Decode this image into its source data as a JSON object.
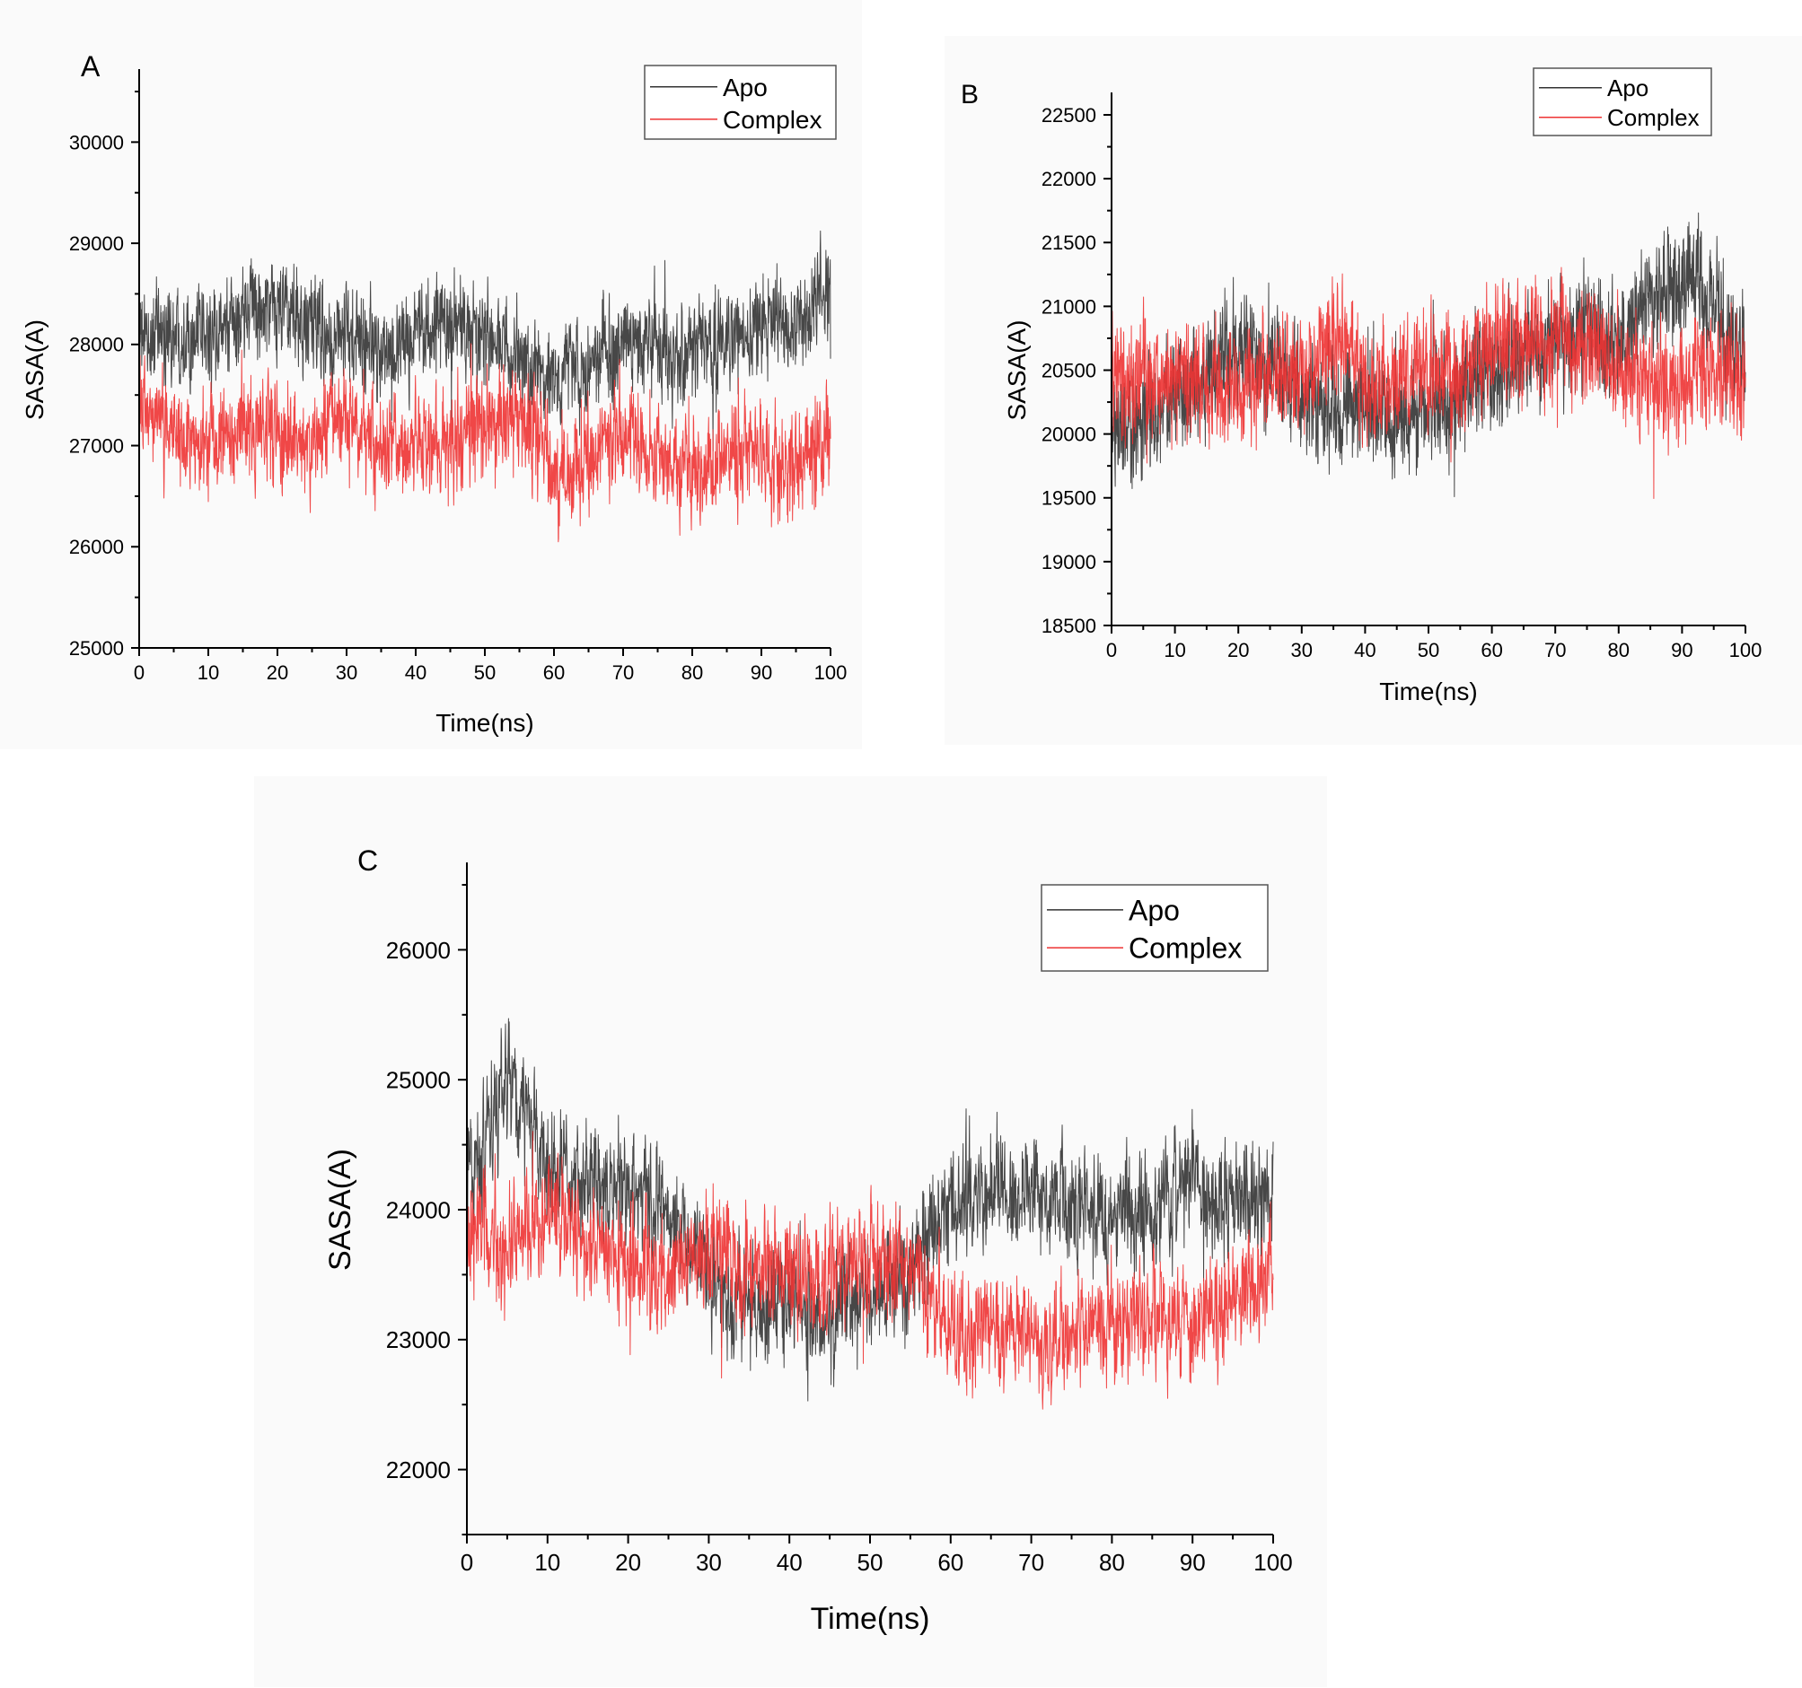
{
  "chart_data": [
    {
      "panel": "A",
      "type": "line",
      "xlabel": "Time(ns)",
      "ylabel": "SASA(A)",
      "xlim": [
        0,
        100
      ],
      "ylim": [
        25000,
        30500
      ],
      "xticks": [
        0,
        10,
        20,
        30,
        40,
        50,
        60,
        70,
        80,
        90,
        100
      ],
      "xtick_labels": [
        "0",
        "10",
        "20",
        "30",
        "40",
        "50",
        "60",
        "70",
        "80",
        "90",
        "100"
      ],
      "yticks": [
        25000,
        26000,
        27000,
        28000,
        29000,
        30000
      ],
      "ytick_labels": [
        "25000",
        "26000",
        "27000",
        "28000",
        "29000",
        "30000"
      ],
      "legend_position": "top-right",
      "series": [
        {
          "name": "Apo",
          "color": "#333333",
          "noise": 450,
          "trend": [
            [
              0,
              28000
            ],
            [
              5,
              28150
            ],
            [
              10,
              28050
            ],
            [
              15,
              28300
            ],
            [
              20,
              28350
            ],
            [
              25,
              28200
            ],
            [
              30,
              28050
            ],
            [
              35,
              27950
            ],
            [
              40,
              28100
            ],
            [
              45,
              28200
            ],
            [
              50,
              28050
            ],
            [
              55,
              27900
            ],
            [
              60,
              27600
            ],
            [
              65,
              27800
            ],
            [
              70,
              28000
            ],
            [
              75,
              28050
            ],
            [
              80,
              27900
            ],
            [
              85,
              28000
            ],
            [
              90,
              28200
            ],
            [
              95,
              28250
            ],
            [
              100,
              28600
            ]
          ]
        },
        {
          "name": "Complex",
          "color": "#ee3333",
          "noise": 480,
          "trend": [
            [
              0,
              27400
            ],
            [
              5,
              27100
            ],
            [
              10,
              27050
            ],
            [
              15,
              27100
            ],
            [
              20,
              27150
            ],
            [
              25,
              27050
            ],
            [
              30,
              27300
            ],
            [
              35,
              27000
            ],
            [
              40,
              27050
            ],
            [
              45,
              27000
            ],
            [
              50,
              27200
            ],
            [
              55,
              27300
            ],
            [
              60,
              26700
            ],
            [
              65,
              26900
            ],
            [
              70,
              27100
            ],
            [
              75,
              26900
            ],
            [
              80,
              26800
            ],
            [
              85,
              26850
            ],
            [
              90,
              26950
            ],
            [
              95,
              26700
            ],
            [
              100,
              27100
            ]
          ]
        }
      ]
    },
    {
      "panel": "B",
      "type": "line",
      "xlabel": "Time(ns)",
      "ylabel": "SASA(A)",
      "xlim": [
        0,
        100
      ],
      "ylim": [
        18500,
        22500
      ],
      "xticks": [
        0,
        10,
        20,
        30,
        40,
        50,
        60,
        70,
        80,
        90,
        100
      ],
      "xtick_labels": [
        "0",
        "10",
        "20",
        "30",
        "40",
        "50",
        "60",
        "70",
        "80",
        "90",
        "100"
      ],
      "yticks": [
        18500,
        19000,
        19500,
        20000,
        20500,
        21000,
        21500,
        22000,
        22500
      ],
      "ytick_labels": [
        "18500",
        "19000",
        "19500",
        "20000",
        "20500",
        "21000",
        "21500",
        "22000",
        "22500"
      ],
      "legend_position": "top-right",
      "series": [
        {
          "name": "Apo",
          "color": "#333333",
          "noise": 420,
          "trend": [
            [
              0,
              19900
            ],
            [
              5,
              20100
            ],
            [
              10,
              20300
            ],
            [
              15,
              20400
            ],
            [
              20,
              20700
            ],
            [
              25,
              20600
            ],
            [
              30,
              20300
            ],
            [
              35,
              20200
            ],
            [
              40,
              20200
            ],
            [
              45,
              20100
            ],
            [
              50,
              20200
            ],
            [
              55,
              20300
            ],
            [
              60,
              20500
            ],
            [
              65,
              20600
            ],
            [
              70,
              20700
            ],
            [
              75,
              20800
            ],
            [
              80,
              20700
            ],
            [
              85,
              21000
            ],
            [
              90,
              21200
            ],
            [
              95,
              21000
            ],
            [
              100,
              20600
            ]
          ]
        },
        {
          "name": "Complex",
          "color": "#ee3333",
          "noise": 420,
          "trend": [
            [
              0,
              20400
            ],
            [
              5,
              20500
            ],
            [
              10,
              20400
            ],
            [
              15,
              20400
            ],
            [
              20,
              20300
            ],
            [
              25,
              20500
            ],
            [
              30,
              20400
            ],
            [
              35,
              20800
            ],
            [
              40,
              20500
            ],
            [
              45,
              20400
            ],
            [
              50,
              20500
            ],
            [
              55,
              20500
            ],
            [
              60,
              20700
            ],
            [
              65,
              20700
            ],
            [
              70,
              20800
            ],
            [
              75,
              20700
            ],
            [
              80,
              20500
            ],
            [
              85,
              20400
            ],
            [
              90,
              20400
            ],
            [
              95,
              20500
            ],
            [
              100,
              20400
            ]
          ]
        }
      ]
    },
    {
      "panel": "C",
      "type": "line",
      "xlabel": "Time(ns)",
      "ylabel": "SASA(A)",
      "xlim": [
        0,
        100
      ],
      "ylim": [
        21500,
        26500
      ],
      "xticks": [
        0,
        10,
        20,
        30,
        40,
        50,
        60,
        70,
        80,
        90,
        100
      ],
      "xtick_labels": [
        "0",
        "10",
        "20",
        "30",
        "40",
        "50",
        "60",
        "70",
        "80",
        "90",
        "100"
      ],
      "yticks": [
        22000,
        23000,
        24000,
        25000,
        26000
      ],
      "ytick_labels": [
        "22000",
        "23000",
        "24000",
        "25000",
        "26000"
      ],
      "legend_position": "top-right",
      "series": [
        {
          "name": "Apo",
          "color": "#333333",
          "noise": 420,
          "trend": [
            [
              0,
              24200
            ],
            [
              3,
              24700
            ],
            [
              5,
              24950
            ],
            [
              8,
              24600
            ],
            [
              10,
              24300
            ],
            [
              15,
              24200
            ],
            [
              20,
              24150
            ],
            [
              25,
              24000
            ],
            [
              30,
              23450
            ],
            [
              35,
              23300
            ],
            [
              40,
              23300
            ],
            [
              45,
              23150
            ],
            [
              50,
              23350
            ],
            [
              55,
              23500
            ],
            [
              60,
              24050
            ],
            [
              65,
              24150
            ],
            [
              70,
              24150
            ],
            [
              75,
              24100
            ],
            [
              80,
              23900
            ],
            [
              85,
              24000
            ],
            [
              90,
              24200
            ],
            [
              95,
              24050
            ],
            [
              100,
              24050
            ]
          ]
        },
        {
          "name": "Complex",
          "color": "#ee3333",
          "noise": 420,
          "trend": [
            [
              0,
              23800
            ],
            [
              5,
              23700
            ],
            [
              10,
              24000
            ],
            [
              15,
              23700
            ],
            [
              20,
              23550
            ],
            [
              25,
              23500
            ],
            [
              30,
              23700
            ],
            [
              35,
              23600
            ],
            [
              40,
              23500
            ],
            [
              45,
              23500
            ],
            [
              50,
              23600
            ],
            [
              55,
              23600
            ],
            [
              60,
              23100
            ],
            [
              65,
              23100
            ],
            [
              70,
              23000
            ],
            [
              75,
              23100
            ],
            [
              80,
              23100
            ],
            [
              85,
              23200
            ],
            [
              90,
              23100
            ],
            [
              95,
              23300
            ],
            [
              100,
              23500
            ]
          ]
        }
      ]
    }
  ]
}
